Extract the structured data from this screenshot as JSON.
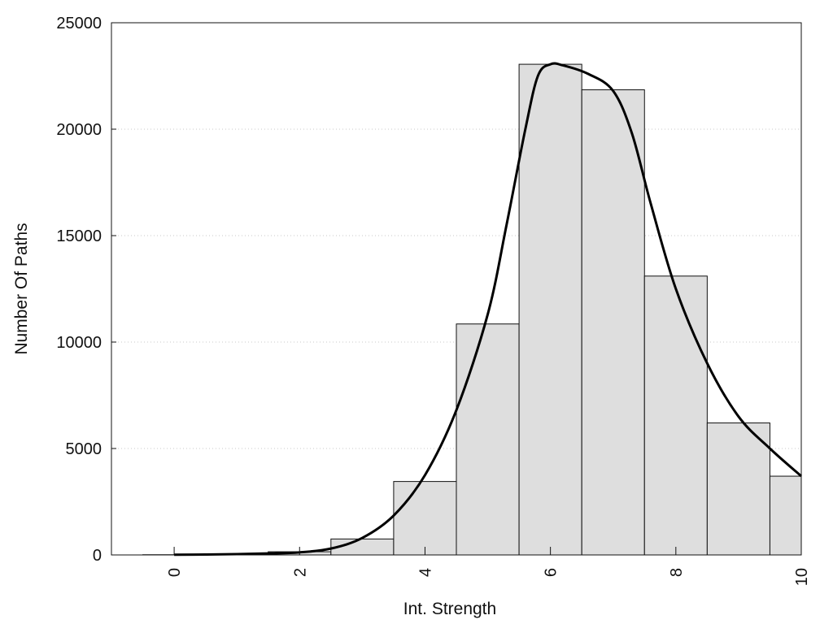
{
  "chart_data": {
    "type": "bar",
    "title": "",
    "xlabel": "Int. Strength",
    "ylabel": "Number Of Paths",
    "xlim": [
      -1,
      10
    ],
    "ylim": [
      0,
      25000
    ],
    "x_ticks": [
      0,
      2,
      4,
      6,
      8,
      10
    ],
    "y_ticks": [
      0,
      5000,
      10000,
      15000,
      20000,
      25000
    ],
    "grid": "horizontal dotted",
    "legend": "none",
    "bar_color": "#dedede",
    "bar_edge_color": "#111111",
    "series": [
      {
        "type": "bar",
        "x": [
          0,
          1,
          2,
          3,
          4,
          5,
          6,
          7,
          8,
          9,
          10
        ],
        "values": [
          10,
          40,
          150,
          750,
          3450,
          10850,
          23050,
          21850,
          13100,
          6200,
          3700
        ]
      },
      {
        "type": "line",
        "x": [
          0,
          0.5,
          1,
          1.5,
          2,
          2.5,
          3,
          3.5,
          4,
          4.5,
          5,
          5.3,
          5.6,
          5.8,
          6,
          6.2,
          6.6,
          7,
          7.3,
          7.6,
          8,
          8.5,
          9,
          9.5,
          10
        ],
        "values": [
          10,
          20,
          40,
          70,
          120,
          300,
          800,
          1850,
          3750,
          6800,
          11300,
          15500,
          20000,
          22500,
          23050,
          23000,
          22600,
          21800,
          19800,
          16500,
          12500,
          9000,
          6500,
          5000,
          3700
        ]
      }
    ]
  }
}
